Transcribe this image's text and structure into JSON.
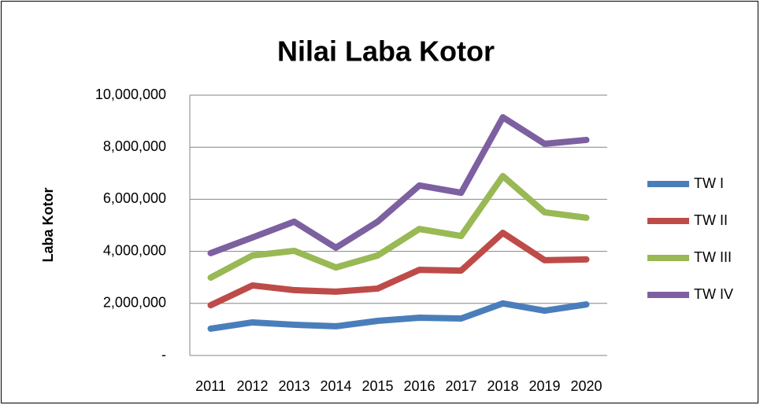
{
  "chart_data": {
    "type": "line",
    "title": "Nilai Laba Kotor",
    "y_label": "Laba Kotor",
    "categories": [
      "2011",
      "2012",
      "2013",
      "2014",
      "2015",
      "2016",
      "2017",
      "2018",
      "2019",
      "2020"
    ],
    "series": [
      {
        "name": "TW I",
        "color": "#4a7ebb",
        "values": [
          1030000,
          1270000,
          1180000,
          1120000,
          1330000,
          1450000,
          1420000,
          2000000,
          1720000,
          1960000
        ]
      },
      {
        "name": "TW II",
        "color": "#be4b48",
        "values": [
          1930000,
          2690000,
          2510000,
          2450000,
          2570000,
          3290000,
          3260000,
          4710000,
          3660000,
          3690000
        ]
      },
      {
        "name": "TW III",
        "color": "#98b954",
        "values": [
          2990000,
          3840000,
          4020000,
          3380000,
          3840000,
          4860000,
          4590000,
          6890000,
          5500000,
          5290000
        ]
      },
      {
        "name": "TW IV",
        "color": "#7d60a0",
        "values": [
          3930000,
          4530000,
          5140000,
          4140000,
          5140000,
          6530000,
          6250000,
          9150000,
          8130000,
          8280000
        ]
      }
    ],
    "ylim": [
      0,
      10000000
    ],
    "yticks": [
      {
        "value": 0,
        "label": "-"
      },
      {
        "value": 2000000,
        "label": "2,000,000"
      },
      {
        "value": 4000000,
        "label": "4,000,000"
      },
      {
        "value": 6000000,
        "label": "6,000,000"
      },
      {
        "value": 8000000,
        "label": "8,000,000"
      },
      {
        "value": 10000000,
        "label": "10,000,000"
      }
    ],
    "grid": true,
    "legend": "right"
  }
}
